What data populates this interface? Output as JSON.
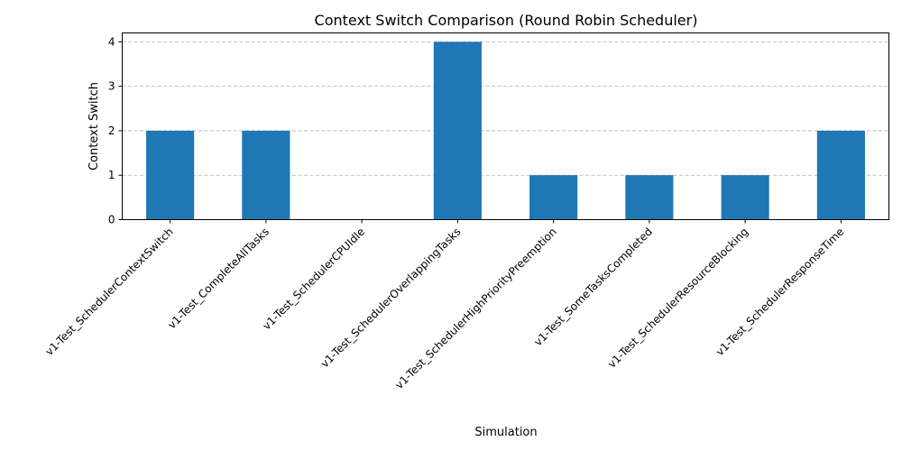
{
  "chart_data": {
    "type": "bar",
    "title": "Context Switch Comparison (Round Robin Scheduler)",
    "xlabel": "Simulation",
    "ylabel": "Context Switch",
    "categories": [
      "v1-Test_SchedulerContextSwitch",
      "v1-Test_CompleteAllTasks",
      "v1-Test_SchedulerCPUIdle",
      "v1-Test_SchedulerOverlappingTasks",
      "v1-Test_SchedulerHighPriorityPreemption",
      "v1-Test_SomeTasksCompleted",
      "v1-Test_SchedulerResourceBlocking",
      "v1-Test_SchedulerResponseTime"
    ],
    "values": [
      2,
      2,
      0,
      4,
      1,
      1,
      1,
      2
    ],
    "ylim": [
      0,
      4.2
    ],
    "yticks": [
      0,
      1,
      2,
      3,
      4
    ],
    "grid": "y-dashed",
    "bar_color": "#1f77b4",
    "tick_label_rotation_deg": 45
  }
}
